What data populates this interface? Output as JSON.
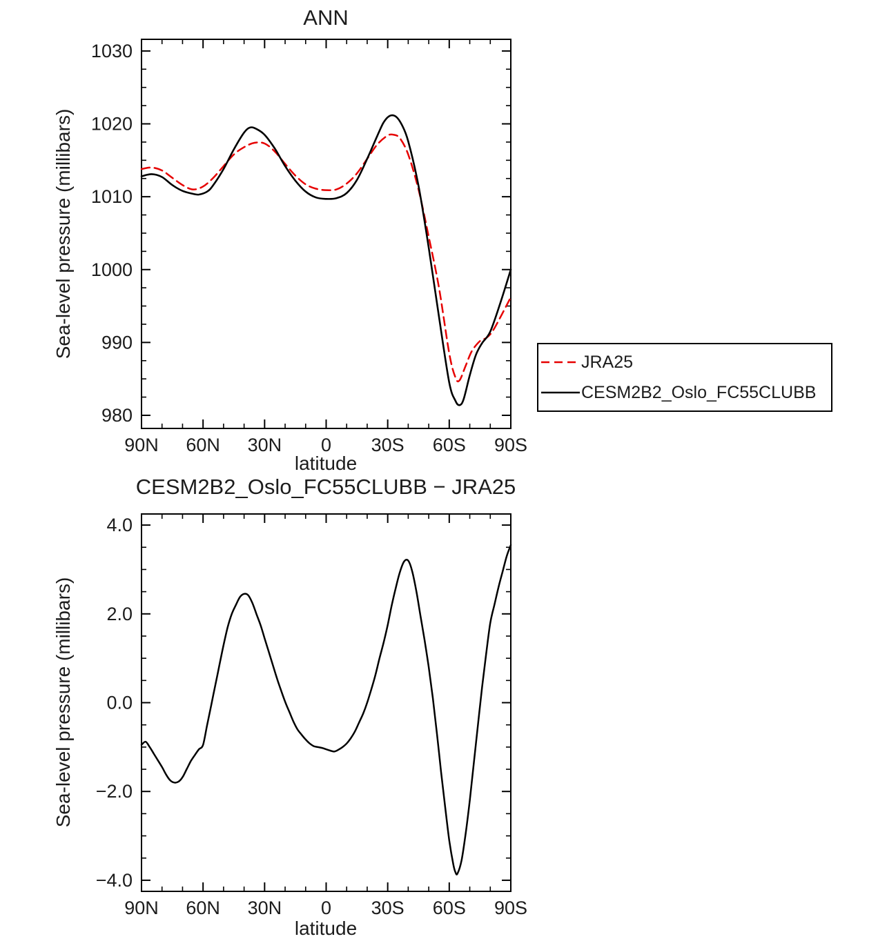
{
  "page": {
    "background": "#ffffff",
    "text_color": "#1c1c1c",
    "axis_color": "#000000"
  },
  "chart_data": [
    {
      "type": "line",
      "title": "ANN",
      "xlabel": "latitude",
      "ylabel": "Sea-level pressure (millibars)",
      "xlim": [
        90,
        -90
      ],
      "ylim": [
        978.2,
        1031.6
      ],
      "grid": false,
      "xticks": {
        "values": [
          90,
          60,
          30,
          0,
          -30,
          -60,
          -90
        ],
        "labels": [
          "90N",
          "60N",
          "30N",
          "0",
          "30S",
          "60S",
          "90S"
        ],
        "minor_step": 10
      },
      "yticks": {
        "values": [
          980,
          990,
          1000,
          1010,
          1020,
          1030
        ],
        "labels": [
          "980",
          "990",
          "1000",
          "1010",
          "1020",
          "1030"
        ],
        "minor_step": 2.5
      },
      "legend": {
        "position": "right-outside",
        "entries": [
          {
            "label": "JRA25",
            "color": "#e60000",
            "dash": true
          },
          {
            "label": "CESM2B2_Oslo_FC55CLUBB",
            "color": "#000000",
            "dash": false
          }
        ]
      },
      "series": [
        {
          "name": "JRA25",
          "color": "#e60000",
          "style": "dashed",
          "width": 2.5,
          "x": [
            90,
            85,
            80,
            75,
            70,
            65,
            60,
            55,
            50,
            45,
            40,
            35,
            30,
            25,
            20,
            15,
            10,
            5,
            0,
            -5,
            -10,
            -15,
            -20,
            -25,
            -30,
            -33,
            -36,
            -40,
            -45,
            -50,
            -55,
            -60,
            -63,
            -65,
            -68,
            -71,
            -75,
            -78,
            -81,
            -85,
            -90
          ],
          "y": [
            1013.8,
            1014.0,
            1013.6,
            1012.6,
            1011.6,
            1011.0,
            1011.4,
            1012.6,
            1014.2,
            1015.8,
            1016.8,
            1017.4,
            1017.3,
            1016.2,
            1014.5,
            1012.9,
            1011.7,
            1011.1,
            1010.9,
            1011.0,
            1011.8,
            1013.2,
            1015.2,
            1017.2,
            1018.4,
            1018.5,
            1018.0,
            1015.8,
            1011.0,
            1004.5,
            997.5,
            988.5,
            985.2,
            984.8,
            986.8,
            988.8,
            990.2,
            990.6,
            991.5,
            993.5,
            996.2
          ]
        },
        {
          "name": "CESM2B2_Oslo_FC55CLUBB",
          "color": "#000000",
          "style": "solid",
          "width": 2.6,
          "x": [
            90,
            85,
            80,
            75,
            70,
            65,
            62,
            58,
            55,
            50,
            45,
            40,
            37,
            34,
            30,
            25,
            20,
            15,
            10,
            5,
            0,
            -5,
            -10,
            -15,
            -20,
            -25,
            -28,
            -31,
            -34,
            -37,
            -40,
            -45,
            -50,
            -55,
            -60,
            -63,
            -65,
            -67,
            -70,
            -73,
            -76,
            -80,
            -85,
            -90
          ],
          "y": [
            1012.8,
            1013.1,
            1012.7,
            1011.6,
            1010.8,
            1010.4,
            1010.3,
            1010.7,
            1011.6,
            1013.8,
            1016.5,
            1018.8,
            1019.5,
            1019.3,
            1018.5,
            1016.6,
            1014.2,
            1012.2,
            1010.7,
            1009.9,
            1009.7,
            1009.8,
            1010.5,
            1012.3,
            1015.2,
            1018.4,
            1020.2,
            1021.1,
            1021.0,
            1019.8,
            1017.6,
            1011.5,
            1003.0,
            993.5,
            984.5,
            982.0,
            981.4,
            982.2,
            985.5,
            988.3,
            989.9,
            991.5,
            995.5,
            1000.0
          ]
        }
      ]
    },
    {
      "type": "line",
      "title": "CESM2B2_Oslo_FC55CLUBB − JRA25",
      "xlabel": "latitude",
      "ylabel": "Sea-level pressure (millibars)",
      "xlim": [
        90,
        -90
      ],
      "ylim": [
        -4.25,
        4.25
      ],
      "grid": false,
      "xticks": {
        "values": [
          90,
          60,
          30,
          0,
          -30,
          -60,
          -90
        ],
        "labels": [
          "90N",
          "60N",
          "30N",
          "0",
          "30S",
          "60S",
          "90S"
        ],
        "minor_step": 10
      },
      "yticks": {
        "values": [
          -4,
          -2,
          0,
          2,
          4
        ],
        "labels": [
          "−4.0",
          "−2.0",
          "0.0",
          "2.0",
          "4.0"
        ],
        "minor_step": 0.5
      },
      "series": [
        {
          "name": "CESM2B2_Oslo_FC55CLUBB − JRA25",
          "color": "#000000",
          "style": "solid",
          "width": 2.5,
          "x": [
            90,
            88,
            86,
            84,
            82,
            80,
            78,
            76,
            74,
            72,
            70,
            68,
            66,
            64,
            62,
            60,
            58,
            56,
            54,
            52,
            50,
            48,
            46,
            44,
            42,
            40,
            38,
            36,
            34,
            32,
            30,
            28,
            26,
            24,
            22,
            20,
            18,
            16,
            14,
            12,
            10,
            8,
            6,
            4,
            2,
            0,
            -2,
            -4,
            -6,
            -8,
            -10,
            -12,
            -14,
            -16,
            -18,
            -20,
            -22,
            -24,
            -26,
            -28,
            -30,
            -32,
            -34,
            -36,
            -38,
            -40,
            -42,
            -44,
            -46,
            -48,
            -50,
            -52,
            -54,
            -56,
            -58,
            -60,
            -62,
            -63,
            -64,
            -66,
            -68,
            -70,
            -72,
            -74,
            -76,
            -78,
            -80,
            -82,
            -84,
            -86,
            -88,
            -90
          ],
          "y": [
            -0.95,
            -0.88,
            -1.0,
            -1.15,
            -1.3,
            -1.45,
            -1.62,
            -1.75,
            -1.8,
            -1.78,
            -1.68,
            -1.5,
            -1.32,
            -1.18,
            -1.05,
            -0.95,
            -0.5,
            -0.05,
            0.4,
            0.85,
            1.3,
            1.7,
            2.0,
            2.2,
            2.38,
            2.45,
            2.42,
            2.25,
            2.0,
            1.75,
            1.45,
            1.15,
            0.85,
            0.55,
            0.28,
            0.02,
            -0.2,
            -0.42,
            -0.6,
            -0.72,
            -0.83,
            -0.92,
            -0.98,
            -1.0,
            -1.02,
            -1.05,
            -1.08,
            -1.1,
            -1.06,
            -1.0,
            -0.92,
            -0.8,
            -0.65,
            -0.45,
            -0.25,
            0.0,
            0.3,
            0.62,
            1.0,
            1.35,
            1.75,
            2.2,
            2.6,
            2.95,
            3.18,
            3.2,
            2.95,
            2.5,
            1.95,
            1.4,
            0.8,
            0.1,
            -0.7,
            -1.55,
            -2.35,
            -3.1,
            -3.65,
            -3.82,
            -3.85,
            -3.55,
            -2.95,
            -2.2,
            -1.35,
            -0.5,
            0.35,
            1.1,
            1.8,
            2.2,
            2.6,
            2.95,
            3.3,
            3.55
          ]
        }
      ]
    }
  ]
}
